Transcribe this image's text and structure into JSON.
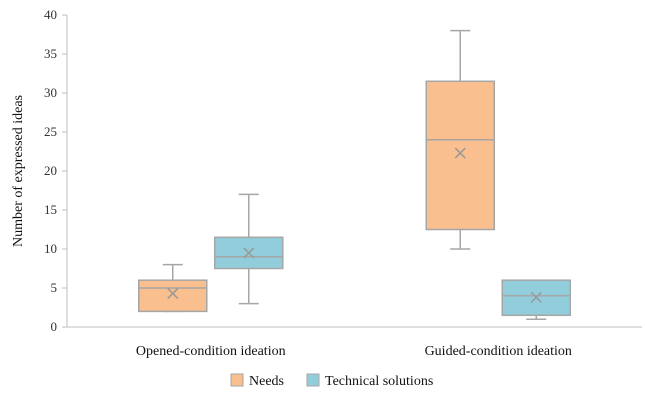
{
  "chart_data": {
    "type": "box",
    "title": "",
    "xlabel": "",
    "ylabel": "Number of expressed ideas",
    "ylim": [
      0,
      40
    ],
    "yticks": [
      "0",
      "5",
      "10",
      "15",
      "20",
      "25",
      "30",
      "35",
      "40"
    ],
    "categories": [
      "Opened-condition ideation",
      "Guided-condition ideation"
    ],
    "grid": false,
    "legend_position": "bottom",
    "series": [
      {
        "name": "Needs",
        "color": "#F9BF8F",
        "stroke": "#A6A6A6",
        "boxes": [
          {
            "min": 2,
            "q1": 2,
            "median": 5,
            "q3": 6,
            "max": 8,
            "mean": 4.3
          },
          {
            "min": 10,
            "q1": 12.5,
            "median": 24,
            "q3": 31.5,
            "max": 38,
            "mean": 22.3
          }
        ]
      },
      {
        "name": "Technical solutions",
        "color": "#92CDDC",
        "stroke": "#A6A6A6",
        "boxes": [
          {
            "min": 3,
            "q1": 7.5,
            "median": 9,
            "q3": 11.5,
            "max": 17,
            "mean": 9.5
          },
          {
            "min": 1,
            "q1": 1.5,
            "median": 4,
            "q3": 6,
            "max": 6,
            "mean": 3.8
          }
        ]
      }
    ]
  }
}
